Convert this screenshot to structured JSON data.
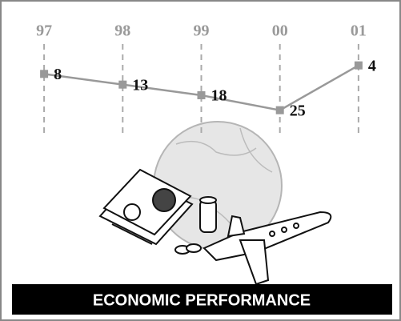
{
  "chart_data": {
    "type": "line",
    "title": "ECONOMIC PERFORMANCE",
    "categories": [
      "97",
      "98",
      "99",
      "00",
      "01"
    ],
    "values": [
      8,
      13,
      18,
      25,
      4
    ],
    "ylim": [
      0,
      30
    ],
    "y_inverted": true,
    "color": "#999999"
  }
}
